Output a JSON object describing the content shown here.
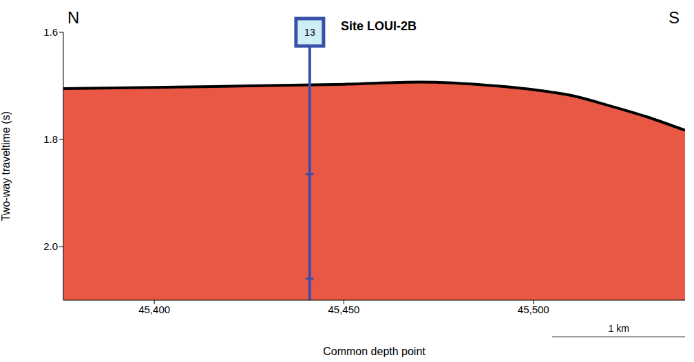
{
  "chart_data": {
    "type": "area",
    "x_label": "Common depth point",
    "y_label": "Two-way traveltime (s)",
    "x": [
      45376,
      45400,
      45425,
      45450,
      45470,
      45490,
      45500,
      45510,
      45520,
      45530,
      45540
    ],
    "values": [
      1.705,
      1.703,
      1.7,
      1.697,
      1.693,
      1.7,
      1.707,
      1.718,
      1.737,
      1.758,
      1.783
    ],
    "color": "#e53b24",
    "xlim": [
      45376,
      45540
    ],
    "xticks": [
      {
        "value": 45400,
        "label": "45,400"
      },
      {
        "value": 45450,
        "label": "45,450"
      },
      {
        "value": 45500,
        "label": "45,500"
      }
    ],
    "ylim": [
      1.6,
      2.1
    ],
    "yticks": [
      1.6,
      1.8,
      {
        "value": 2,
        "label": "2.0"
      }
    ],
    "annotations": {
      "site": {
        "cdp": 45441,
        "number": "13",
        "name": "Site LOUI-2B",
        "marks": [
          1.865,
          2.06
        ],
        "color": "#3a4fa8"
      },
      "left": "N",
      "right": "S",
      "scale_bar": {
        "label": "1 km",
        "length": 35
      }
    }
  }
}
